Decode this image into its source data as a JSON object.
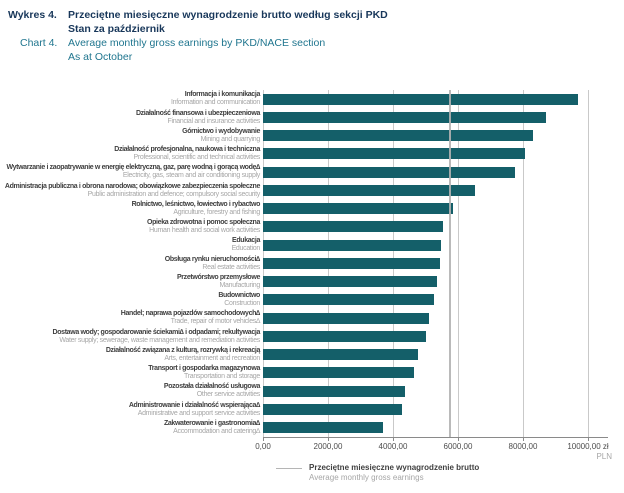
{
  "header": {
    "wykres_label": "Wykres 4.",
    "title_pl_line1": "Przeciętne miesięczne wynagrodzenie brutto według sekcji PKD",
    "title_pl_line2": "Stan za październik",
    "chart_label": "Chart 4.",
    "title_en_line1": "Average monthly gross earnings by PKD/NACE section",
    "title_en_line2": "As at October"
  },
  "chart_data": {
    "type": "bar",
    "orientation": "horizontal",
    "title": "Przeciętne miesięczne wynagrodzenie brutto według sekcji PKD / Average monthly gross earnings by PKD/NACE section",
    "xlabel_unit_line1": "zł",
    "xlabel_unit_line2": "PLN",
    "xlim": [
      0,
      10000
    ],
    "x_tick_values": [
      0,
      2000,
      4000,
      6000,
      8000,
      10000
    ],
    "x_tick_labels": [
      "0,00",
      "2000,00",
      "4000,00",
      "6000,00",
      "8000,00",
      "10000,00 zł"
    ],
    "grid": true,
    "legend_position": "bottom",
    "bar_color": "#145f69",
    "grid_color": "#c9c9c9",
    "average_line_color": "#b3b3b3",
    "average_line_value": 5710,
    "series_name_pl": "Przeciętne miesięczne wynagrodzenie brutto",
    "series_name_en": "Average monthly gross earnings",
    "categories": [
      {
        "pl": "Informacja i komunikacja",
        "en": "Information and communication",
        "value": 9680
      },
      {
        "pl": "Działalność finansowa i ubezpieczeniowa",
        "en": "Financial and insurance activities",
        "value": 8710
      },
      {
        "pl": "Górnictwo i wydobywanie",
        "en": "Mining and quarrying",
        "value": 8310
      },
      {
        "pl": "Działalność profesjonalna, naukowa i techniczna",
        "en": "Professional, scientific and technical activities",
        "value": 8050
      },
      {
        "pl": "Wytwarzanie i zaopatrywanie w energię elektryczną, gaz, parę wodną i gorącą wodę∆",
        "en": "Electricity, gas, steam and air conditioning supply",
        "value": 7750
      },
      {
        "pl": "Administracja publiczna i obrona narodowa; obowiązkowe zabezpieczenia społeczne",
        "en": "Public administration and defence; compulsory social security",
        "value": 6520
      },
      {
        "pl": "Rolnictwo, leśnictwo, łowiectwo i rybactwo",
        "en": "Agriculture, forestry and fishing",
        "value": 5850
      },
      {
        "pl": "Opieka zdrowotna i pomoc społeczna",
        "en": "Human health and social work activities",
        "value": 5530
      },
      {
        "pl": "Edukacja",
        "en": "Education",
        "value": 5480
      },
      {
        "pl": "Obsługa rynku nieruchomości∆",
        "en": "Real estate activities",
        "value": 5440
      },
      {
        "pl": "Przetwórstwo przemysłowe",
        "en": "Manufacturing",
        "value": 5350
      },
      {
        "pl": "Budownictwo",
        "en": "Construction",
        "value": 5250
      },
      {
        "pl": "Handel; naprawa pojazdów samochodowych∆",
        "en": "Trade, repair of motor vehicles∆",
        "value": 5120
      },
      {
        "pl": "Dostawa wody; gospodarowanie ściekami∆ i odpadami; rekultywacja",
        "en": "Water supply; sewerage, waste management and remediation activities",
        "value": 5020
      },
      {
        "pl": "Działalność związana z kulturą, rozrywką i rekreacją",
        "en": "Arts, entertainment and recreation",
        "value": 4780
      },
      {
        "pl": "Transport i gospodarka magazynowa",
        "en": "Transportation and storage",
        "value": 4650
      },
      {
        "pl": "Pozostała działalność usługowa",
        "en": "Other service activities",
        "value": 4380
      },
      {
        "pl": "Administrowanie i działalność wspierająca∆",
        "en": "Administrative and support service activities",
        "value": 4280
      },
      {
        "pl": "Zakwaterowanie i gastronomia∆",
        "en": "Accommodation and catering∆",
        "value": 3690
      }
    ]
  },
  "legend": {
    "pl": "Przeciętne miesięczne wynagrodzenie brutto",
    "en": "Average monthly gross earnings"
  }
}
